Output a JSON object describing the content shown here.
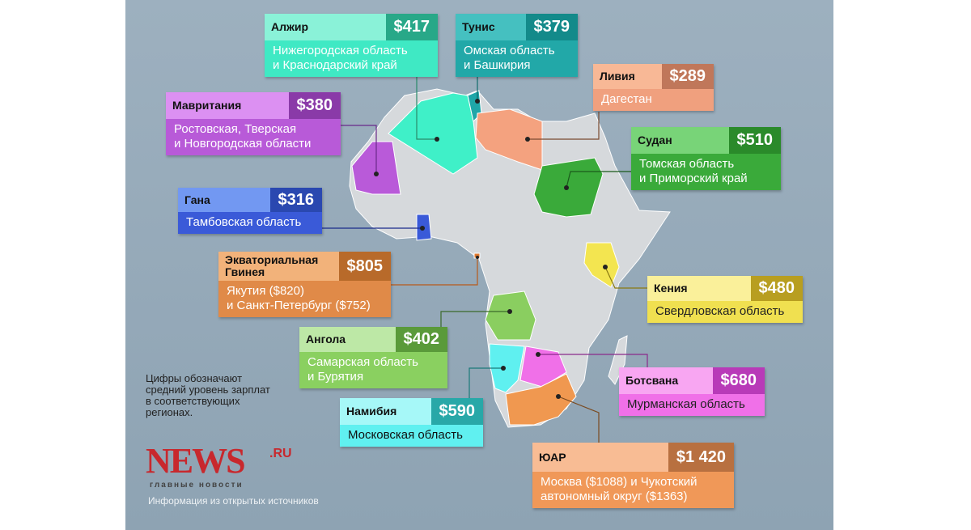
{
  "countries": [
    {
      "name": "Алжир",
      "price": "$417",
      "regions": [
        "Нижегородская область",
        "и Краснодарский край"
      ]
    },
    {
      "name": "Тунис",
      "price": "$379",
      "regions": [
        "Омская область",
        "и Башкирия"
      ]
    },
    {
      "name": "Ливия",
      "price": "$289",
      "regions": [
        "Дагестан"
      ]
    },
    {
      "name": "Мавритания",
      "price": "$380",
      "regions": [
        "Ростовская, Тверская",
        "и Новгородская области"
      ]
    },
    {
      "name": "Судан",
      "price": "$510",
      "regions": [
        "Томская область",
        "и Приморский край"
      ]
    },
    {
      "name": "Гана",
      "price": "$316",
      "regions": [
        "Тамбовская область"
      ]
    },
    {
      "name": "Экваториальная Гвинея",
      "price": "$805",
      "regions": [
        "Якутия ($820)",
        "и Санкт-Петербург ($752)"
      ]
    },
    {
      "name": "Кения",
      "price": "$480",
      "regions": [
        "Свердловская область"
      ]
    },
    {
      "name": "Ангола",
      "price": "$402",
      "regions": [
        "Самарская область",
        "и Бурятия"
      ]
    },
    {
      "name": "Ботсвана",
      "price": "$680",
      "regions": [
        "Мурманская область"
      ]
    },
    {
      "name": "Намибия",
      "price": "$590",
      "regions": [
        "Московская область"
      ]
    },
    {
      "name": "ЮАР",
      "price": "$1 420",
      "regions": [
        "Москва ($1088) и Чукотский",
        "автономный округ ($1363)"
      ]
    }
  ],
  "note": [
    "Цифры обозначают",
    "средний уровень зарплат",
    "в соответствующих",
    "регионах."
  ],
  "logo": {
    "name": "NEWS",
    "suffix": ".RU",
    "tagline": "главные новости"
  },
  "source": "Информация из открытых источников"
}
